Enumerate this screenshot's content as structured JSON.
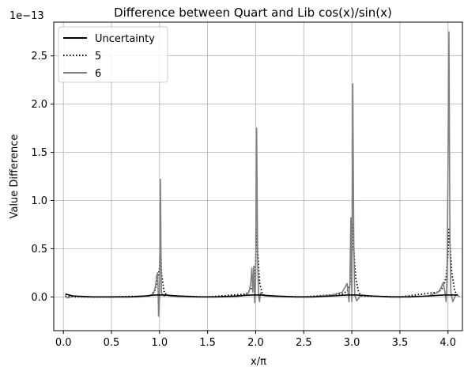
{
  "chart_data": {
    "type": "line",
    "title": "Difference between Quart and Lib cos(x)/sin(x)",
    "xlabel": "x/π",
    "ylabel": "Value Difference",
    "y_offset_label": "1e−13",
    "xlim": [
      -0.1,
      4.15
    ],
    "ylim": [
      -0.35,
      2.85
    ],
    "y_scale": "×1e-13",
    "grid": true,
    "legend_position": "top-left",
    "x_ticks": [
      0.0,
      0.5,
      1.0,
      1.5,
      2.0,
      2.5,
      3.0,
      3.5,
      4.0
    ],
    "x_tick_labels": [
      "0.0",
      "0.5",
      "1.0",
      "1.5",
      "2.0",
      "2.5",
      "3.0",
      "3.5",
      "4.0"
    ],
    "y_ticks": [
      0.0,
      0.5,
      1.0,
      1.5,
      2.0,
      2.5
    ],
    "y_tick_labels": [
      "0.0",
      "0.5",
      "1.0",
      "1.5",
      "2.0",
      "2.5"
    ],
    "series": [
      {
        "name": "Uncertainty",
        "style": "solid",
        "color": "#000000",
        "x": [
          0.02,
          0.1,
          0.3,
          0.5,
          0.7,
          0.85,
          0.95,
          1.05,
          1.2,
          1.4,
          1.6,
          1.8,
          1.95,
          2.05,
          2.2,
          2.4,
          2.6,
          2.8,
          2.95,
          3.05,
          3.2,
          3.4,
          3.6,
          3.8,
          3.95,
          4.05,
          4.1
        ],
        "y": [
          0.03,
          0.01,
          0.0,
          0.0,
          0.0,
          0.01,
          0.02,
          0.02,
          0.01,
          0.0,
          0.0,
          0.01,
          0.02,
          0.02,
          0.01,
          0.0,
          0.0,
          0.01,
          0.02,
          0.02,
          0.01,
          0.0,
          0.0,
          0.01,
          0.02,
          0.02,
          0.02
        ]
      },
      {
        "name": "5",
        "style": "dotted",
        "color": "#000000",
        "x": [
          0.02,
          0.1,
          0.5,
          0.9,
          0.95,
          0.98,
          1.0,
          1.01,
          1.02,
          1.05,
          1.1,
          1.5,
          1.9,
          1.95,
          1.98,
          2.0,
          2.01,
          2.02,
          2.04,
          2.07,
          2.1,
          2.5,
          2.9,
          2.95,
          2.98,
          3.0,
          3.01,
          3.02,
          3.04,
          3.07,
          3.1,
          3.5,
          3.9,
          3.95,
          3.98,
          4.0,
          4.01,
          4.02,
          4.04,
          4.07,
          4.1
        ],
        "y": [
          0.01,
          0.0,
          0.0,
          0.01,
          0.06,
          0.18,
          0.3,
          0.6,
          0.25,
          0.04,
          0.01,
          0.0,
          0.03,
          0.08,
          0.15,
          0.35,
          0.7,
          0.5,
          0.15,
          0.03,
          0.01,
          0.0,
          0.03,
          0.06,
          0.12,
          0.4,
          0.75,
          0.5,
          0.2,
          0.05,
          0.01,
          0.0,
          0.05,
          0.1,
          0.2,
          0.45,
          0.7,
          0.55,
          0.25,
          0.06,
          0.02
        ]
      },
      {
        "name": "6",
        "style": "solid",
        "color": "#808080",
        "x": [
          0.02,
          0.05,
          0.1,
          0.2,
          0.4,
          0.6,
          0.8,
          0.9,
          0.94,
          0.96,
          0.97,
          0.98,
          0.985,
          0.99,
          1.0,
          1.01,
          1.015,
          1.02,
          1.03,
          1.05,
          1.08,
          1.1,
          1.2,
          1.4,
          1.6,
          1.8,
          1.9,
          1.93,
          1.95,
          1.96,
          1.97,
          1.98,
          1.99,
          2.0,
          2.01,
          2.02,
          2.03,
          2.04,
          2.05,
          2.07,
          2.1,
          2.2,
          2.4,
          2.6,
          2.8,
          2.9,
          2.93,
          2.95,
          2.96,
          2.97,
          2.98,
          2.99,
          3.0,
          3.01,
          3.02,
          3.03,
          3.05,
          3.08,
          3.1,
          3.2,
          3.4,
          3.6,
          3.8,
          3.9,
          3.93,
          3.95,
          3.97,
          3.98,
          3.99,
          4.0,
          4.01,
          4.02,
          4.03,
          4.05,
          4.08,
          4.1,
          4.12
        ],
        "y": [
          0.0,
          -0.01,
          0.01,
          0.0,
          0.0,
          0.0,
          0.0,
          0.01,
          0.04,
          0.12,
          0.22,
          0.25,
          0.1,
          -0.2,
          0.0,
          1.22,
          0.5,
          0.05,
          0.02,
          0.01,
          0.02,
          0.01,
          0.0,
          0.0,
          0.0,
          0.0,
          0.02,
          0.05,
          0.15,
          0.3,
          0.05,
          0.32,
          -0.06,
          0.2,
          1.75,
          0.4,
          0.02,
          -0.05,
          0.04,
          0.02,
          0.01,
          0.0,
          0.0,
          0.0,
          0.02,
          0.05,
          0.1,
          0.14,
          0.05,
          -0.05,
          0.15,
          0.82,
          -0.05,
          2.21,
          0.6,
          0.02,
          -0.04,
          0.0,
          0.02,
          0.01,
          0.0,
          0.0,
          0.01,
          0.05,
          0.1,
          0.15,
          0.04,
          -0.05,
          0.2,
          1.33,
          2.75,
          0.6,
          0.05,
          -0.05,
          0.02,
          0.02,
          0.0
        ]
      }
    ]
  }
}
